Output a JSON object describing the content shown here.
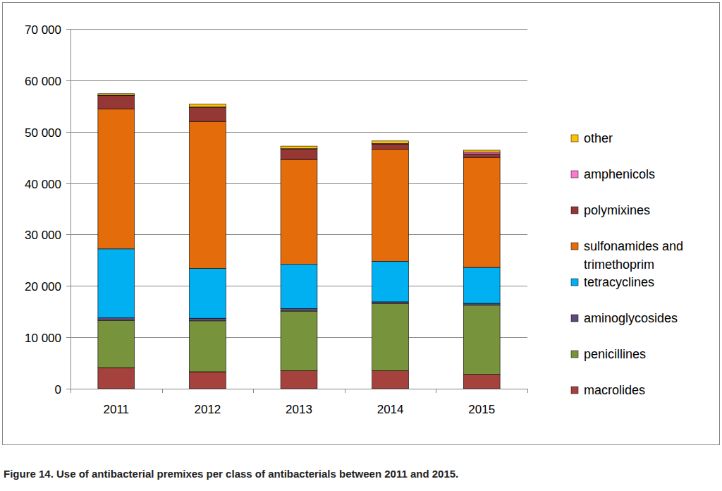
{
  "chart_data": {
    "type": "bar",
    "title": "Figure 14. Use of antibacterial premixes per class of antibacterials between 2011 and 2015.",
    "categories": [
      "2011",
      "2012",
      "2013",
      "2014",
      "2015"
    ],
    "stacked": true,
    "grid": true,
    "legend": "right",
    "ylim": [
      0,
      70000
    ],
    "yticks": [
      0,
      {
        "value": 10000,
        "label": "10 000"
      },
      {
        "value": 20000,
        "label": "20 000"
      },
      {
        "value": 30000,
        "label": "30 000"
      },
      {
        "value": 40000,
        "label": "40 000"
      },
      {
        "value": 50000,
        "label": "50 000"
      },
      {
        "value": 60000,
        "label": "60 000"
      },
      {
        "value": 70000,
        "label": "70 000"
      }
    ],
    "series": [
      {
        "name": "macrolides",
        "color": "#a5423d",
        "values": [
          4100,
          3300,
          3500,
          3500,
          2800
        ]
      },
      {
        "name": "penicillines",
        "color": "#77933c",
        "values": [
          9200,
          9900,
          11600,
          13100,
          13500
        ]
      },
      {
        "name": "aminoglycosides",
        "color": "#604a7b",
        "values": [
          500,
          500,
          500,
          300,
          300
        ]
      },
      {
        "name": "tetracyclines",
        "color": "#00b0f0",
        "values": [
          13400,
          9700,
          8600,
          7900,
          7000
        ]
      },
      {
        "name": "sulfonamides and trimethoprim",
        "color": "#e46c0a",
        "values": [
          27200,
          28600,
          20400,
          21800,
          21400
        ]
      },
      {
        "name": "polymixines",
        "color": "#953735",
        "values": [
          2600,
          2700,
          2000,
          1000,
          700
        ]
      },
      {
        "name": "amphenicols",
        "color": "#ff79cf",
        "values": [
          100,
          100,
          100,
          100,
          300
        ]
      },
      {
        "name": "other",
        "color": "#ffc000",
        "values": [
          300,
          600,
          500,
          500,
          400
        ]
      }
    ]
  }
}
